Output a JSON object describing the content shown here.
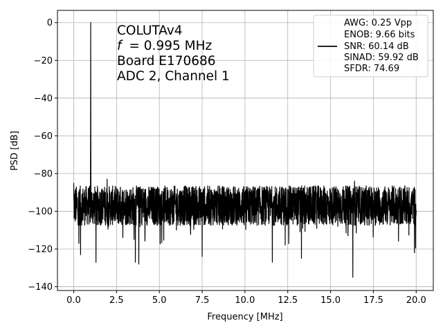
{
  "chart_data": {
    "type": "line",
    "xlabel": "Frequency [MHz]",
    "ylabel": "PSD [dB]",
    "xlim": [
      -0.95,
      21.0
    ],
    "ylim": [
      -142,
      6.5
    ],
    "grid": true,
    "x_ticks": [
      "0.0",
      "2.5",
      "5.0",
      "7.5",
      "10.0",
      "12.5",
      "15.0",
      "17.5",
      "20.0"
    ],
    "x_tick_values": [
      0,
      2.5,
      5,
      7.5,
      10,
      12.5,
      15,
      17.5,
      20
    ],
    "y_ticks": [
      "0",
      "−20",
      "−40",
      "−60",
      "−80",
      "−100",
      "−120",
      "−140"
    ],
    "y_tick_values": [
      0,
      -20,
      -40,
      -60,
      -80,
      -100,
      -120,
      -140
    ],
    "annotation_lines": [
      "COLUTAv4",
      "= 0.995 MHz",
      "Board E170686",
      "ADC 2, Channel 1"
    ],
    "annotation_italic_prefix": "f",
    "legend": {
      "placement": "top-right",
      "lines": [
        "AWG: 0.25 Vpp",
        "ENOB: 9.66 bits",
        "SNR: 60.14 dB",
        "SINAD: 59.92 dB",
        "SFDR: 74.69"
      ],
      "line_color": "#000000"
    },
    "series": [
      {
        "color": "#000000",
        "fundamental": {
          "x": 0.995,
          "y": 0
        },
        "noise_floor_mean": -97,
        "noise_floor_range": [
          -110,
          -89
        ],
        "x_range": [
          0,
          20
        ],
        "spurs": [
          {
            "x": 0.0,
            "y": -85
          },
          {
            "x": 0.3,
            "y": -117
          },
          {
            "x": 0.4,
            "y": -123
          },
          {
            "x": 1.3,
            "y": -127
          },
          {
            "x": 1.95,
            "y": -83
          },
          {
            "x": 3.6,
            "y": -127
          },
          {
            "x": 3.8,
            "y": -128
          },
          {
            "x": 7.5,
            "y": -124
          },
          {
            "x": 11.6,
            "y": -127
          },
          {
            "x": 13.3,
            "y": -125
          },
          {
            "x": 16.3,
            "y": -135
          },
          {
            "x": 16.4,
            "y": -84
          },
          {
            "x": 19.9,
            "y": -122
          }
        ]
      }
    ]
  }
}
